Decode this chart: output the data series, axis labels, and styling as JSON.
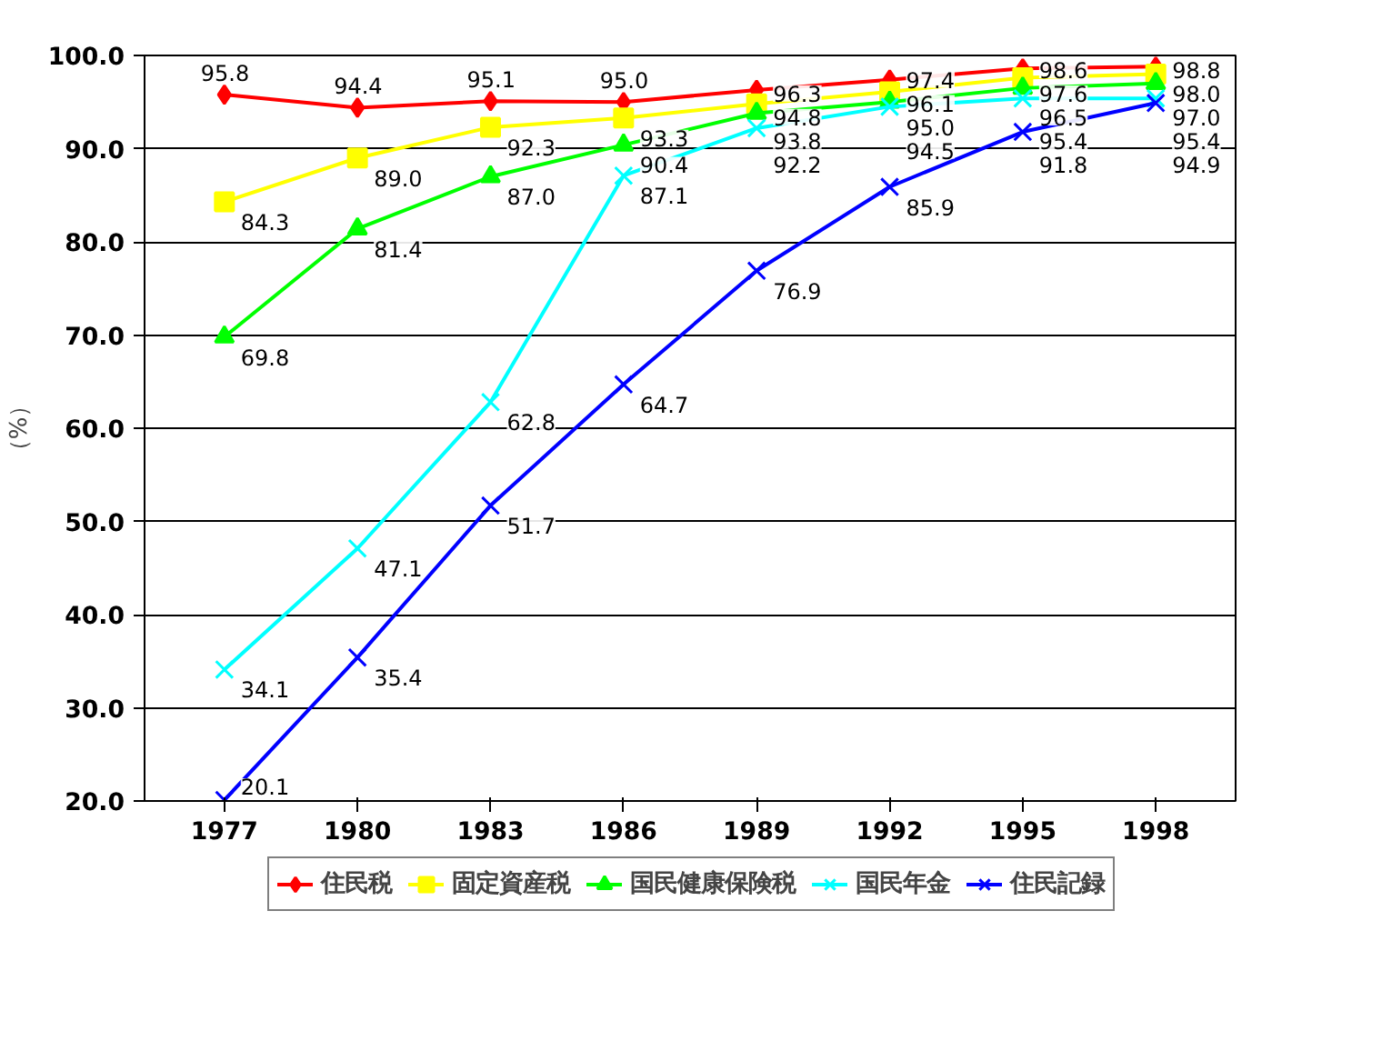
{
  "chart_data": {
    "type": "line",
    "ylabel": "（%）",
    "categories": [
      "1977",
      "1980",
      "1983",
      "1986",
      "1989",
      "1992",
      "1995",
      "1998"
    ],
    "ylim": [
      20,
      100
    ],
    "yticks": [
      {
        "value": 20,
        "label": "20.0"
      },
      {
        "value": 30,
        "label": "30.0"
      },
      {
        "value": 40,
        "label": "40.0"
      },
      {
        "value": 50,
        "label": "50.0"
      },
      {
        "value": 60,
        "label": "60.0"
      },
      {
        "value": 70,
        "label": "70.0"
      },
      {
        "value": 80,
        "label": "80.0"
      },
      {
        "value": 90,
        "label": "90.0"
      },
      {
        "value": 100,
        "label": "100.0"
      }
    ],
    "grid": "y",
    "legend": "bottom",
    "line_style": "solid",
    "series": [
      {
        "name": "住民税",
        "color": "#ff0000",
        "marker": "diamond",
        "values": [
          95.8,
          94.4,
          95.1,
          95.0,
          96.3,
          97.4,
          98.6,
          98.8
        ],
        "value_labels": [
          "95.8",
          "94.4",
          "95.1",
          "95.0",
          "96.3",
          "97.4",
          "98.6",
          "98.8"
        ]
      },
      {
        "name": "固定資産税",
        "color": "#ffff00",
        "marker": "square",
        "values": [
          84.3,
          89.0,
          92.3,
          93.3,
          94.8,
          96.1,
          97.6,
          98.0
        ],
        "value_labels": [
          "84.3",
          "89.0",
          "92.3",
          "93.3",
          "94.8",
          "96.1",
          "97.6",
          "98.0"
        ]
      },
      {
        "name": "国民健康保険税",
        "color": "#00ff00",
        "marker": "triangle",
        "values": [
          69.8,
          81.4,
          87.0,
          90.4,
          93.8,
          95.0,
          96.5,
          97.0
        ],
        "value_labels": [
          "69.8",
          "81.4",
          "87.0",
          "90.4",
          "93.8",
          "95.0",
          "96.5",
          "97.0"
        ]
      },
      {
        "name": "国民年金",
        "color": "#00ffff",
        "marker": "cross",
        "values": [
          34.1,
          47.1,
          62.8,
          87.1,
          92.2,
          94.5,
          95.4,
          95.4
        ],
        "value_labels": [
          "34.1",
          "47.1",
          "62.8",
          "87.1",
          "92.2",
          "94.5",
          "95.4",
          "95.4"
        ]
      },
      {
        "name": "住民記録",
        "color": "#0000ff",
        "marker": "cross",
        "values": [
          20.1,
          35.4,
          51.7,
          64.7,
          76.9,
          85.9,
          91.8,
          94.9
        ],
        "value_labels": [
          "20.1",
          "35.4",
          "51.7",
          "64.7",
          "76.9",
          "85.9",
          "91.8",
          "94.9"
        ]
      }
    ]
  }
}
